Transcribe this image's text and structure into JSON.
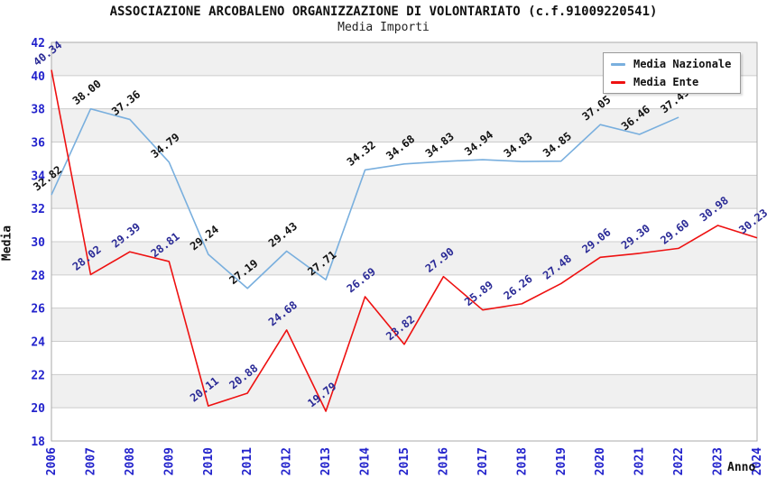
{
  "chart_data": {
    "type": "line",
    "title": "ASSOCIAZIONE ARCOBALENO ORGANIZZAZIONE DI VOLONTARIATO (c.f.91009220541)",
    "subtitle": "Media Importi",
    "xlabel": "Anno",
    "ylabel": "Media",
    "ylim": [
      18,
      42
    ],
    "ytick_step": 2,
    "grid": true,
    "legend_position": "top-right",
    "categories": [
      "2006",
      "2007",
      "2008",
      "2009",
      "2010",
      "2011",
      "2012",
      "2013",
      "2014",
      "2015",
      "2016",
      "2017",
      "2018",
      "2019",
      "2020",
      "2021",
      "2022",
      "2023",
      "2024"
    ],
    "series": [
      {
        "name": "Media Nazionale",
        "color": "#79afde",
        "label_color": "#111111",
        "values": [
          32.82,
          38.0,
          37.36,
          34.79,
          29.24,
          27.19,
          29.43,
          27.71,
          34.32,
          34.68,
          34.83,
          34.94,
          34.83,
          34.85,
          37.05,
          36.46,
          37.49
        ]
      },
      {
        "name": "Media Ente",
        "color": "#ee1111",
        "label_color": "#2a2a96",
        "values": [
          40.34,
          28.02,
          29.39,
          28.81,
          20.11,
          20.88,
          24.68,
          19.79,
          26.69,
          23.82,
          27.9,
          25.89,
          26.26,
          27.48,
          29.06,
          29.3,
          29.6,
          30.98,
          30.23
        ]
      }
    ],
    "style": {
      "band_gray": "#f0f0f0",
      "band_white": "#ffffff",
      "gridline_color": "#cccccc",
      "frame_color": "#aaaaaa",
      "tick_label_color": "#2323cc"
    }
  }
}
